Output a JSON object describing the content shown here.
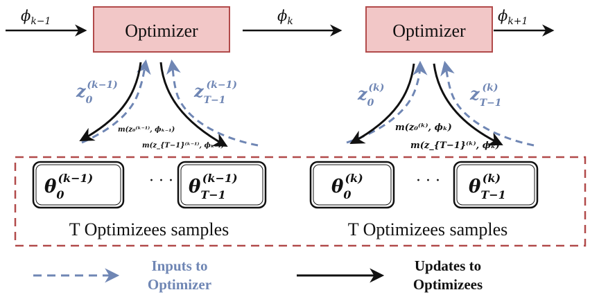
{
  "colors": {
    "optimizer_fill": "#f2c7c7",
    "optimizer_stroke": "#b14a4a",
    "input_arrow": "#6f86b4",
    "update_arrow": "#111111",
    "dashed_group": "#b14a4a"
  },
  "optimizers": [
    {
      "label": "Optimizer"
    },
    {
      "label": "Optimizer"
    }
  ],
  "phi_labels": {
    "left": {
      "base": "ϕ",
      "sub": "k−1"
    },
    "middle": {
      "base": "ϕ",
      "sub": "k"
    },
    "right": {
      "base": "ϕ",
      "sub": "k+1"
    }
  },
  "groups": [
    {
      "z_first": {
        "base": "z",
        "sub": "0",
        "sup": "(k−1)"
      },
      "z_last": {
        "base": "z",
        "sub": "T−1",
        "sup": "(k−1)"
      },
      "m_first": "m(z₀⁽ᵏ⁻¹⁾, ϕₖ₋₁)",
      "m_last": "m(z_{T−1}⁽ᵏ⁻¹⁾, ϕₖ₋₁)",
      "theta_first": {
        "base": "θ",
        "sub": "0",
        "sup": "(k−1)"
      },
      "theta_last": {
        "base": "θ",
        "sub": "T−1",
        "sup": "(k−1)"
      },
      "ellipsis": "· · ·",
      "caption": "T Optimizees samples"
    },
    {
      "z_first": {
        "base": "z",
        "sub": "0",
        "sup": "(k)"
      },
      "z_last": {
        "base": "z",
        "sub": "T−1",
        "sup": "(k)"
      },
      "m_first": "m(z₀⁽ᵏ⁾, ϕₖ)",
      "m_last": "m(z_{T−1}⁽ᵏ⁾, ϕₖ)",
      "theta_first": {
        "base": "θ",
        "sub": "0",
        "sup": "(k)"
      },
      "theta_last": {
        "base": "θ",
        "sub": "T−1",
        "sup": "(k)"
      },
      "ellipsis": "· · ·",
      "caption": "T Optimizees samples"
    }
  ],
  "legend": {
    "inputs_line1": "Inputs to",
    "inputs_line2": "Optimizer",
    "updates_line1": "Updates to",
    "updates_line2": "Optimizees"
  }
}
